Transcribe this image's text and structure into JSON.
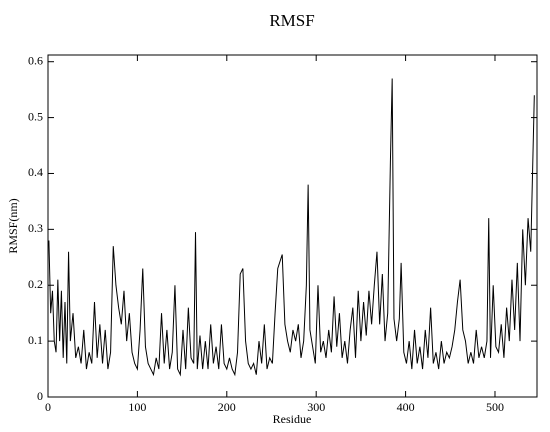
{
  "chart_data": {
    "type": "line",
    "title": "RMSF",
    "x_label": "Residue",
    "y_label": "RMSF(nm)",
    "x": [
      1,
      3,
      5,
      7,
      9,
      11,
      13,
      15,
      17,
      19,
      21,
      23,
      25,
      28,
      31,
      34,
      37,
      40,
      43,
      46,
      49,
      52,
      55,
      58,
      61,
      64,
      67,
      70,
      73,
      76,
      79,
      82,
      85,
      88,
      91,
      94,
      97,
      100,
      103,
      106,
      109,
      112,
      115,
      118,
      121,
      124,
      127,
      130,
      133,
      136,
      139,
      142,
      145,
      148,
      151,
      154,
      157,
      160,
      163,
      165,
      167,
      170,
      173,
      176,
      179,
      182,
      185,
      188,
      191,
      194,
      197,
      200,
      203,
      206,
      209,
      212,
      215,
      218,
      221,
      224,
      227,
      230,
      233,
      236,
      239,
      242,
      245,
      248,
      251,
      254,
      257,
      262,
      265,
      268,
      271,
      274,
      277,
      280,
      283,
      286,
      289,
      291,
      293,
      296,
      299,
      302,
      305,
      308,
      311,
      314,
      317,
      320,
      323,
      326,
      329,
      332,
      335,
      338,
      341,
      344,
      347,
      350,
      353,
      356,
      359,
      362,
      365,
      368,
      371,
      374,
      377,
      380,
      383,
      385,
      387,
      390,
      393,
      395,
      398,
      401,
      404,
      407,
      410,
      413,
      416,
      419,
      422,
      425,
      428,
      431,
      434,
      437,
      440,
      443,
      446,
      449,
      452,
      455,
      458,
      461,
      464,
      467,
      470,
      473,
      476,
      479,
      482,
      485,
      488,
      491,
      493,
      495,
      498,
      501,
      504,
      507,
      510,
      513,
      516,
      519,
      522,
      525,
      528,
      531,
      534,
      537,
      540,
      542,
      544
    ],
    "series": [
      {
        "name": "RMSF",
        "color": "#000000",
        "values": [
          0.28,
          0.15,
          0.19,
          0.1,
          0.08,
          0.21,
          0.1,
          0.19,
          0.07,
          0.17,
          0.06,
          0.26,
          0.1,
          0.15,
          0.07,
          0.09,
          0.06,
          0.12,
          0.05,
          0.08,
          0.06,
          0.17,
          0.07,
          0.13,
          0.06,
          0.12,
          0.05,
          0.08,
          0.27,
          0.2,
          0.16,
          0.13,
          0.19,
          0.1,
          0.15,
          0.08,
          0.06,
          0.05,
          0.12,
          0.23,
          0.09,
          0.06,
          0.05,
          0.04,
          0.07,
          0.05,
          0.15,
          0.06,
          0.12,
          0.05,
          0.08,
          0.2,
          0.05,
          0.04,
          0.12,
          0.05,
          0.16,
          0.07,
          0.06,
          0.295,
          0.05,
          0.11,
          0.05,
          0.1,
          0.05,
          0.13,
          0.06,
          0.09,
          0.05,
          0.13,
          0.06,
          0.05,
          0.07,
          0.05,
          0.04,
          0.08,
          0.22,
          0.23,
          0.1,
          0.06,
          0.05,
          0.06,
          0.04,
          0.1,
          0.06,
          0.13,
          0.05,
          0.07,
          0.06,
          0.15,
          0.23,
          0.255,
          0.13,
          0.1,
          0.08,
          0.12,
          0.1,
          0.13,
          0.07,
          0.1,
          0.2,
          0.38,
          0.12,
          0.09,
          0.06,
          0.2,
          0.08,
          0.1,
          0.07,
          0.12,
          0.08,
          0.18,
          0.09,
          0.15,
          0.07,
          0.1,
          0.06,
          0.12,
          0.16,
          0.07,
          0.19,
          0.1,
          0.17,
          0.11,
          0.19,
          0.13,
          0.2,
          0.26,
          0.13,
          0.22,
          0.1,
          0.15,
          0.42,
          0.57,
          0.14,
          0.1,
          0.14,
          0.24,
          0.08,
          0.06,
          0.1,
          0.05,
          0.12,
          0.06,
          0.09,
          0.05,
          0.12,
          0.07,
          0.16,
          0.06,
          0.08,
          0.05,
          0.1,
          0.06,
          0.08,
          0.07,
          0.09,
          0.12,
          0.17,
          0.21,
          0.12,
          0.1,
          0.06,
          0.08,
          0.06,
          0.12,
          0.07,
          0.09,
          0.07,
          0.1,
          0.32,
          0.07,
          0.2,
          0.09,
          0.08,
          0.13,
          0.07,
          0.16,
          0.1,
          0.21,
          0.12,
          0.24,
          0.1,
          0.3,
          0.2,
          0.32,
          0.26,
          0.4,
          0.54
        ]
      }
    ],
    "xlim": [
      0,
      547
    ],
    "xticks": [
      0,
      100,
      200,
      300,
      400,
      500
    ],
    "ylim": [
      0,
      0.612
    ],
    "yticks": [
      0,
      0.1,
      0.2,
      0.3,
      0.4,
      0.5,
      0.6
    ]
  }
}
